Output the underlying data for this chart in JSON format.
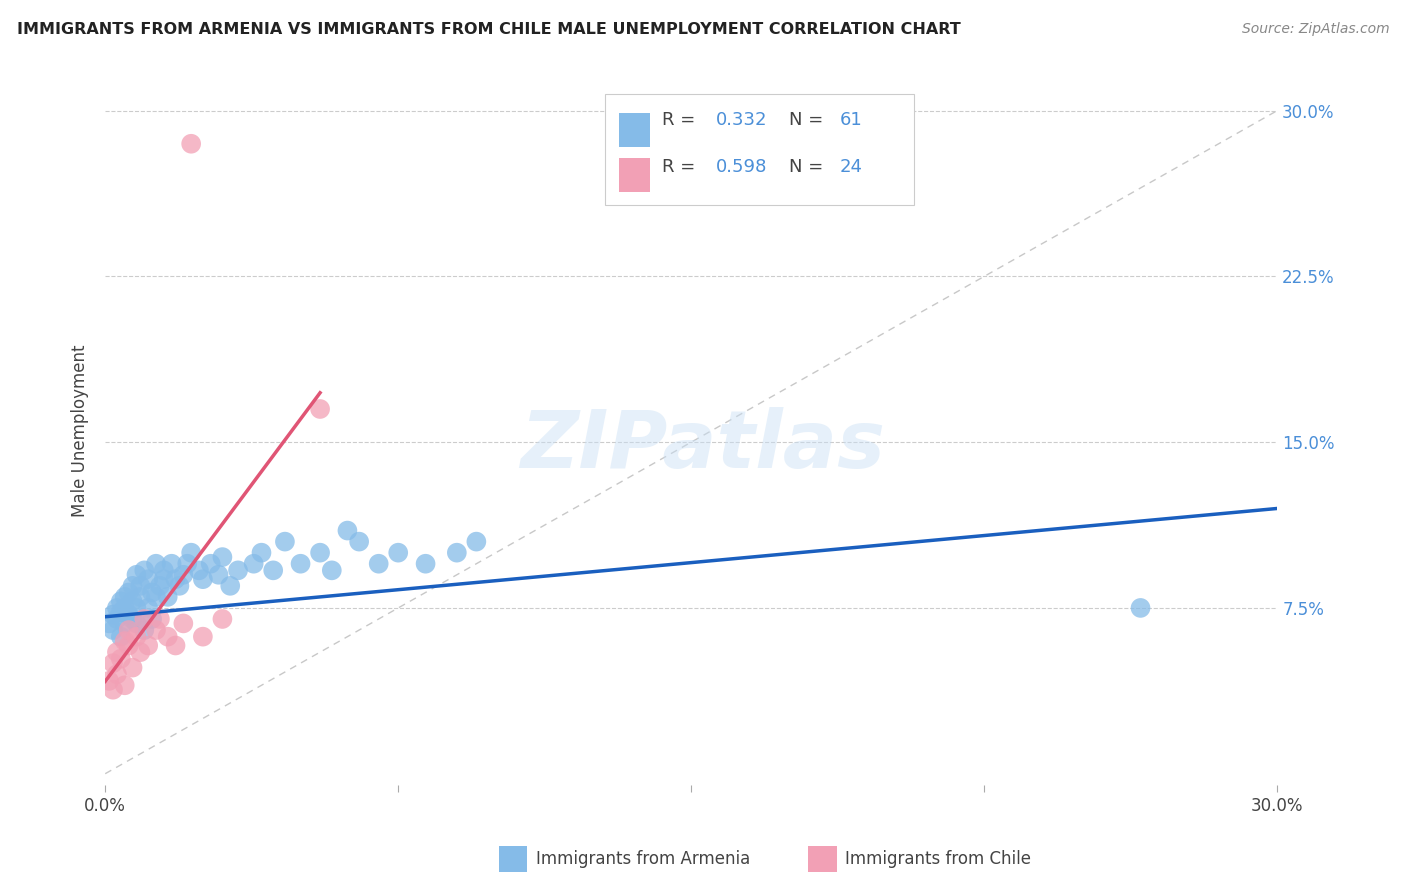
{
  "title": "IMMIGRANTS FROM ARMENIA VS IMMIGRANTS FROM CHILE MALE UNEMPLOYMENT CORRELATION CHART",
  "source": "Source: ZipAtlas.com",
  "ylabel": "Male Unemployment",
  "xlim": [
    0.0,
    0.3
  ],
  "ylim": [
    -0.005,
    0.315
  ],
  "yticks": [
    0.075,
    0.15,
    0.225,
    0.3
  ],
  "ytick_labels": [
    "7.5%",
    "15.0%",
    "22.5%",
    "30.0%"
  ],
  "xticks": [
    0.0,
    0.075,
    0.15,
    0.225,
    0.3
  ],
  "color_armenia": "#85BBE8",
  "color_chile": "#F2A0B5",
  "color_trend_armenia": "#1A5FBF",
  "color_trend_chile": "#E05575",
  "color_diagonal": "#C8C8C8",
  "color_ytick": "#4B8FD8",
  "background": "#ffffff",
  "armenia_x": [
    0.001,
    0.002,
    0.002,
    0.003,
    0.003,
    0.004,
    0.004,
    0.004,
    0.005,
    0.005,
    0.005,
    0.006,
    0.006,
    0.007,
    0.007,
    0.007,
    0.008,
    0.008,
    0.008,
    0.009,
    0.009,
    0.01,
    0.01,
    0.011,
    0.011,
    0.012,
    0.012,
    0.013,
    0.013,
    0.014,
    0.015,
    0.015,
    0.016,
    0.017,
    0.018,
    0.019,
    0.02,
    0.021,
    0.022,
    0.024,
    0.025,
    0.027,
    0.029,
    0.03,
    0.032,
    0.034,
    0.038,
    0.04,
    0.043,
    0.046,
    0.05,
    0.055,
    0.058,
    0.062,
    0.065,
    0.07,
    0.075,
    0.082,
    0.09,
    0.095,
    0.265
  ],
  "armenia_y": [
    0.068,
    0.072,
    0.065,
    0.075,
    0.07,
    0.062,
    0.078,
    0.073,
    0.068,
    0.08,
    0.075,
    0.072,
    0.082,
    0.07,
    0.078,
    0.085,
    0.075,
    0.068,
    0.09,
    0.08,
    0.085,
    0.065,
    0.092,
    0.075,
    0.088,
    0.082,
    0.07,
    0.095,
    0.08,
    0.085,
    0.088,
    0.092,
    0.08,
    0.095,
    0.088,
    0.085,
    0.09,
    0.095,
    0.1,
    0.092,
    0.088,
    0.095,
    0.09,
    0.098,
    0.085,
    0.092,
    0.095,
    0.1,
    0.092,
    0.105,
    0.095,
    0.1,
    0.092,
    0.11,
    0.105,
    0.095,
    0.1,
    0.095,
    0.1,
    0.105,
    0.075
  ],
  "chile_x": [
    0.001,
    0.002,
    0.002,
    0.003,
    0.003,
    0.004,
    0.005,
    0.005,
    0.006,
    0.006,
    0.007,
    0.008,
    0.009,
    0.01,
    0.011,
    0.013,
    0.014,
    0.016,
    0.018,
    0.02,
    0.025,
    0.03,
    0.022,
    0.055
  ],
  "chile_y": [
    0.042,
    0.05,
    0.038,
    0.055,
    0.045,
    0.052,
    0.06,
    0.04,
    0.058,
    0.065,
    0.048,
    0.062,
    0.055,
    0.07,
    0.058,
    0.065,
    0.07,
    0.062,
    0.058,
    0.068,
    0.062,
    0.07,
    0.285,
    0.165
  ],
  "trend_armenia_x0": 0.0,
  "trend_armenia_y0": 0.071,
  "trend_armenia_x1": 0.3,
  "trend_armenia_y1": 0.12,
  "trend_chile_x0": 0.0,
  "trend_chile_y0": 0.02,
  "trend_chile_x1": 0.055,
  "trend_chile_y1": 0.2
}
